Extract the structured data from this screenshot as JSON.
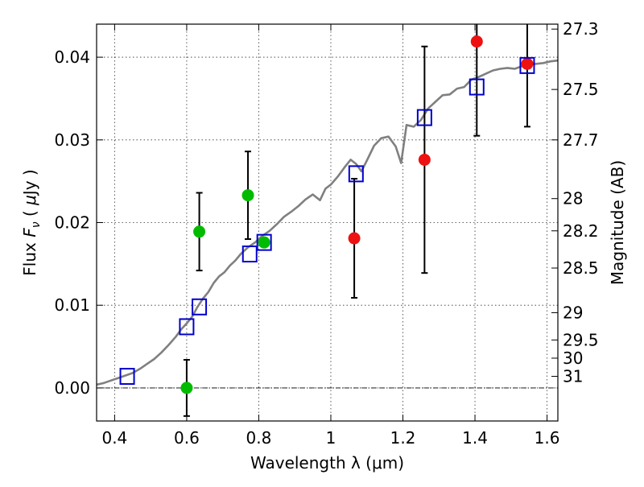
{
  "chart_data": {
    "type": "scatter",
    "xlabel": "Wavelength  λ (μm)",
    "ylabel_parts": [
      "Flux  ",
      "F",
      "ν",
      "  ( ",
      "μ",
      "Jy )"
    ],
    "ylabel_right": "Magnitude (AB)",
    "xlim": [
      0.35,
      1.63
    ],
    "ylim": [
      -0.004,
      0.044
    ],
    "grid": true,
    "x_ticks": [
      {
        "value": 0.4,
        "label": "0.4"
      },
      {
        "value": 0.6,
        "label": "0.6"
      },
      {
        "value": 0.8,
        "label": "0.8"
      },
      {
        "value": 1.0,
        "label": "1"
      },
      {
        "value": 1.2,
        "label": "1.2"
      },
      {
        "value": 1.4,
        "label": "1.4"
      },
      {
        "value": 1.6,
        "label": "1.6"
      }
    ],
    "y_ticks": [
      {
        "value": 0.0,
        "label": "0.00"
      },
      {
        "value": 0.01,
        "label": "0.01"
      },
      {
        "value": 0.02,
        "label": "0.02"
      },
      {
        "value": 0.03,
        "label": "0.03"
      },
      {
        "value": 0.04,
        "label": "0.04"
      }
    ],
    "right_ticks": [
      {
        "flux": 0.0434,
        "label": "27.3"
      },
      {
        "flux": 0.0361,
        "label": "27.5"
      },
      {
        "flux": 0.03,
        "label": "27.7"
      },
      {
        "flux": 0.0229,
        "label": "28"
      },
      {
        "flux": 0.019,
        "label": "28.2"
      },
      {
        "flux": 0.0145,
        "label": "28.5"
      },
      {
        "flux": 0.0091,
        "label": "29"
      },
      {
        "flux": 0.0058,
        "label": "29.5"
      },
      {
        "flux": 0.0036,
        "label": "30"
      },
      {
        "flux": 0.0014,
        "label": "31"
      }
    ],
    "zero_line": 0.0,
    "colors": {
      "model": "#808080",
      "detections": "#00bb00",
      "red_points": "#ee1111",
      "model_photometry": "#0000cc",
      "errorbar": "#000000"
    },
    "series": [
      {
        "style": "model-line",
        "x": [
          0.35,
          0.37,
          0.39,
          0.41,
          0.43,
          0.45,
          0.47,
          0.49,
          0.51,
          0.53,
          0.55,
          0.57,
          0.585,
          0.6,
          0.615,
          0.63,
          0.645,
          0.66,
          0.675,
          0.69,
          0.705,
          0.72,
          0.735,
          0.75,
          0.77,
          0.79,
          0.81,
          0.83,
          0.85,
          0.87,
          0.89,
          0.91,
          0.93,
          0.95,
          0.97,
          0.985,
          1.0,
          1.02,
          1.04,
          1.055,
          1.07,
          1.085,
          1.1,
          1.12,
          1.14,
          1.16,
          1.18,
          1.195,
          1.21,
          1.23,
          1.25,
          1.27,
          1.29,
          1.31,
          1.33,
          1.35,
          1.37,
          1.39,
          1.41,
          1.43,
          1.45,
          1.47,
          1.49,
          1.51,
          1.53,
          1.55,
          1.57,
          1.59,
          1.61,
          1.63
        ],
        "y": [
          0.0004,
          0.0006,
          0.0009,
          0.0012,
          0.0015,
          0.0018,
          0.0023,
          0.0029,
          0.0035,
          0.0043,
          0.0052,
          0.0062,
          0.0071,
          0.0078,
          0.0086,
          0.0098,
          0.0108,
          0.0116,
          0.0127,
          0.0135,
          0.014,
          0.0148,
          0.0154,
          0.0162,
          0.017,
          0.0176,
          0.0184,
          0.019,
          0.0198,
          0.0207,
          0.0213,
          0.022,
          0.0228,
          0.0234,
          0.0227,
          0.0241,
          0.0246,
          0.0256,
          0.0268,
          0.0276,
          0.0271,
          0.0262,
          0.0275,
          0.0293,
          0.0302,
          0.0304,
          0.0292,
          0.0272,
          0.0318,
          0.0316,
          0.0324,
          0.0338,
          0.0346,
          0.0354,
          0.0355,
          0.0362,
          0.0364,
          0.0373,
          0.0376,
          0.038,
          0.0384,
          0.0386,
          0.0387,
          0.0386,
          0.0389,
          0.0391,
          0.0392,
          0.0393,
          0.0395,
          0.0396
        ]
      },
      {
        "style": "green-circles",
        "points": [
          {
            "x": 0.6,
            "y": 0.0,
            "err": 0.0034
          },
          {
            "x": 0.635,
            "y": 0.0189,
            "err": 0.0047
          },
          {
            "x": 0.77,
            "y": 0.0233,
            "err": 0.0053
          },
          {
            "x": 0.815,
            "y": 0.0176,
            "err": 0.0
          }
        ]
      },
      {
        "style": "red-circles",
        "points": [
          {
            "x": 1.065,
            "y": 0.0181,
            "err": 0.0072
          },
          {
            "x": 1.26,
            "y": 0.0276,
            "err": 0.0137
          },
          {
            "x": 1.405,
            "y": 0.0419,
            "err": 0.0114
          },
          {
            "x": 1.545,
            "y": 0.0392,
            "err": 0.0076
          }
        ]
      },
      {
        "style": "blue-squares",
        "points": [
          {
            "x": 0.435,
            "y": 0.0014
          },
          {
            "x": 0.6,
            "y": 0.0074
          },
          {
            "x": 0.635,
            "y": 0.0098
          },
          {
            "x": 0.775,
            "y": 0.0162
          },
          {
            "x": 0.815,
            "y": 0.0176
          },
          {
            "x": 1.07,
            "y": 0.0259
          },
          {
            "x": 1.26,
            "y": 0.0327
          },
          {
            "x": 1.405,
            "y": 0.0364
          },
          {
            "x": 1.545,
            "y": 0.039
          }
        ]
      }
    ]
  }
}
